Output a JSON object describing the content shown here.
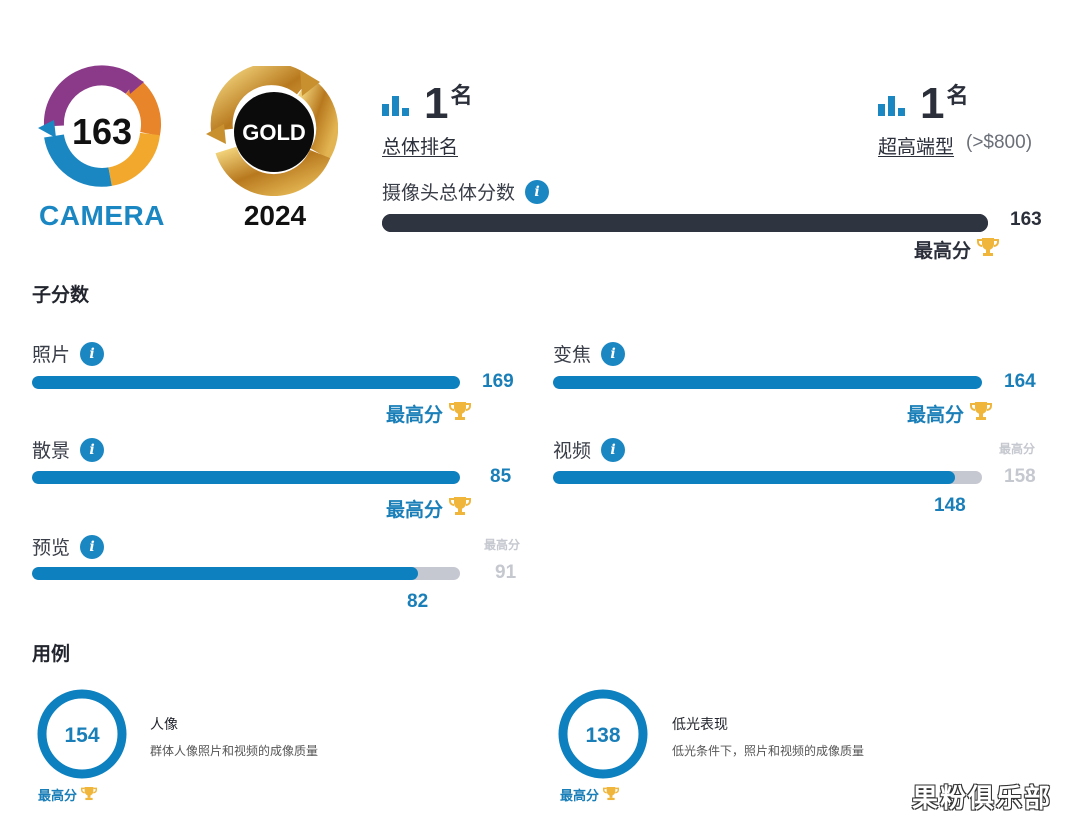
{
  "badges": {
    "camera": {
      "score": "163",
      "label": "CAMERA"
    },
    "gold": {
      "text": "GOLD",
      "year": "2024"
    }
  },
  "ranking": {
    "overall": {
      "num": "1",
      "suffix": "名",
      "label": "总体排名"
    },
    "segment": {
      "num": "1",
      "suffix": "名",
      "label": "超高端型",
      "extra": "(>$800)"
    },
    "total": {
      "title": "摄像头总体分数",
      "score": "163",
      "best_label": "最高分",
      "fill_pct": 100
    }
  },
  "subscores": {
    "title": "子分数",
    "items": {
      "photo": {
        "label": "照片",
        "score": "169",
        "best_label": "最高分",
        "fill_pct": 100
      },
      "zoom": {
        "label": "变焦",
        "score": "164",
        "best_label": "最高分",
        "fill_pct": 100
      },
      "bokeh": {
        "label": "散景",
        "score": "85",
        "best_label": "最高分",
        "fill_pct": 100
      },
      "video": {
        "label": "视频",
        "score": "148",
        "best_label": "最高分",
        "best_score": "158",
        "fill_pct": 93.7
      },
      "preview": {
        "label": "预览",
        "score": "82",
        "best_label": "最高分",
        "best_score": "91",
        "fill_pct": 90.1
      }
    }
  },
  "use_cases": {
    "title": "用例",
    "items": [
      {
        "score": "154",
        "title": "人像",
        "desc": "群体人像照片和视频的成像质量",
        "best_label": "最高分"
      },
      {
        "score": "138",
        "title": "低光表现",
        "desc": "低光条件下，照片和视频的成像质量",
        "best_label": "最高分"
      }
    ]
  },
  "watermark": "果粉俱乐部",
  "colors": {
    "accent": "#0d80bf",
    "dark": "#2f3441",
    "track": "#c5c7d1",
    "gold": "#c8902f"
  }
}
